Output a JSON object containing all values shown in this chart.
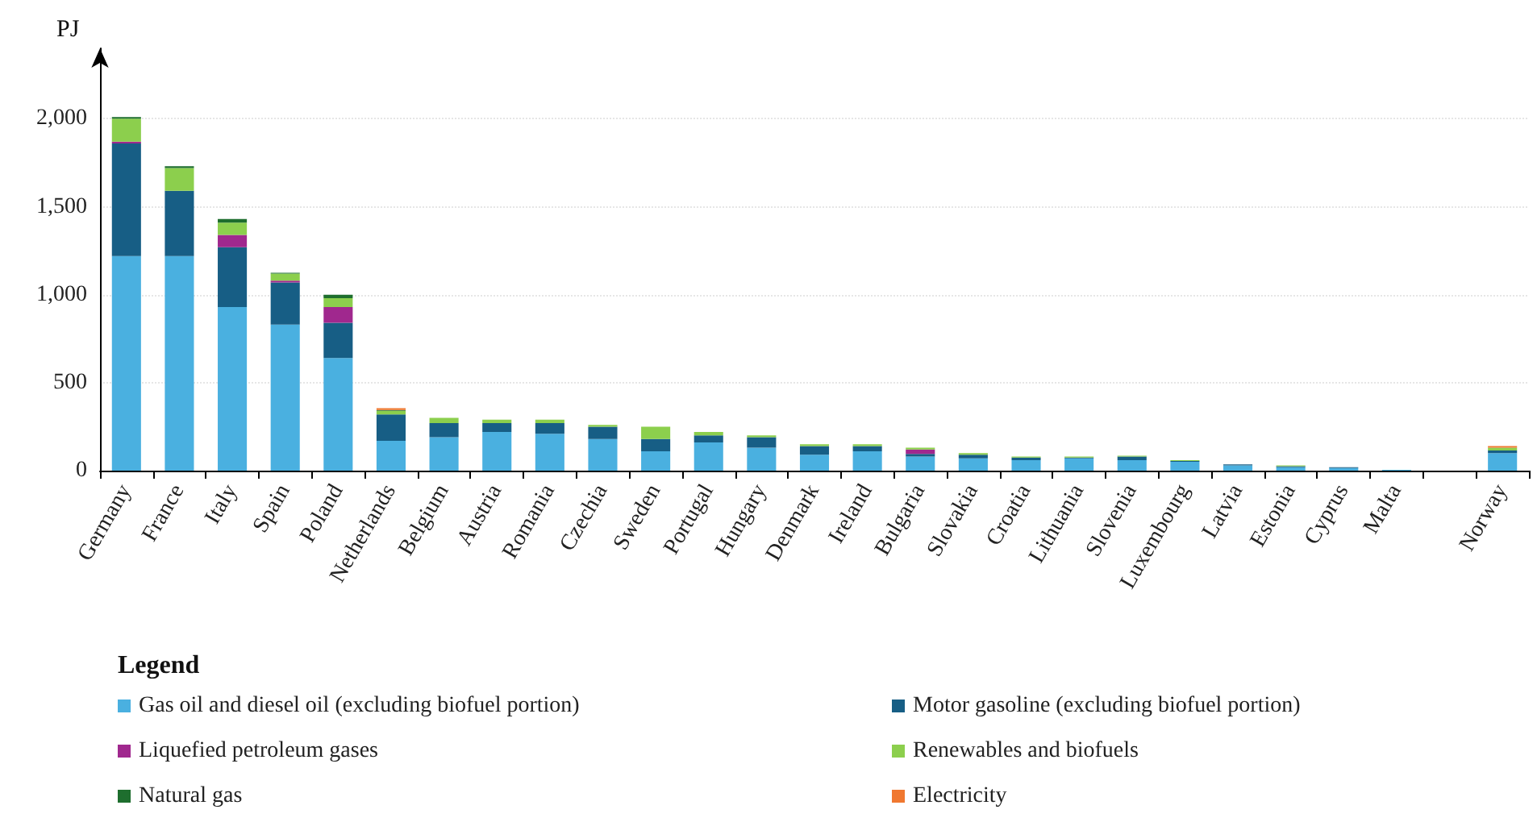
{
  "chart_data": {
    "type": "bar",
    "stacked": true,
    "ylabel": "PJ",
    "legend_title": "Legend",
    "legend": "bottom",
    "grid": "y",
    "categories": [
      "Germany",
      "France",
      "Italy",
      "Spain",
      "Poland",
      "Netherlands",
      "Belgium",
      "Austria",
      "Romania",
      "Czechia",
      "Sweden",
      "Portugal",
      "Hungary",
      "Denmark",
      "Ireland",
      "Bulgaria",
      "Slovakia",
      "Croatia",
      "Lithuania",
      "Slovenia",
      "Luxembourg",
      "Latvia",
      "Estonia",
      "Cyprus",
      "Malta",
      null,
      "Norway"
    ],
    "ylim": [
      0,
      2400
    ],
    "yticks": [
      0,
      500,
      {
        "value": 1000,
        "label": "1,000"
      },
      {
        "value": 1500,
        "label": "1,500"
      },
      {
        "value": 2000,
        "label": "2,000"
      }
    ],
    "series": [
      {
        "name": "Gas oil and diesel oil (excluding biofuel portion)",
        "color": "#4ab0e0",
        "values": [
          1220,
          1220,
          930,
          830,
          640,
          170,
          190,
          220,
          210,
          180,
          110,
          160,
          130,
          90,
          110,
          80,
          70,
          60,
          70,
          60,
          50,
          30,
          20,
          15,
          5,
          null,
          100
        ]
      },
      {
        "name": "Motor gasoline (excluding biofuel portion)",
        "color": "#175e85",
        "values": [
          640,
          370,
          340,
          240,
          200,
          150,
          80,
          50,
          60,
          70,
          70,
          40,
          60,
          50,
          30,
          15,
          20,
          15,
          5,
          20,
          5,
          5,
          5,
          5,
          null,
          null,
          15
        ]
      },
      {
        "name": "Liquefied petroleum gases",
        "color": "#a0288e",
        "values": [
          10,
          null,
          70,
          10,
          90,
          null,
          null,
          null,
          null,
          null,
          null,
          null,
          null,
          null,
          null,
          25,
          null,
          null,
          null,
          null,
          null,
          null,
          null,
          null,
          null,
          null,
          null
        ]
      },
      {
        "name": "Renewables and biofuels",
        "color": "#8ccf4d",
        "values": [
          130,
          130,
          70,
          40,
          50,
          20,
          30,
          20,
          20,
          10,
          70,
          20,
          10,
          10,
          10,
          10,
          10,
          5,
          5,
          5,
          5,
          null,
          5,
          null,
          null,
          null,
          15
        ]
      },
      {
        "name": "Natural gas",
        "color": "#1e6e2e",
        "values": [
          10,
          10,
          20,
          5,
          20,
          5,
          null,
          null,
          null,
          null,
          null,
          null,
          null,
          null,
          null,
          null,
          null,
          null,
          null,
          null,
          null,
          null,
          null,
          null,
          null,
          null,
          null
        ]
      },
      {
        "name": "Electricity",
        "color": "#f07830",
        "values": [
          null,
          null,
          null,
          null,
          null,
          10,
          null,
          null,
          null,
          null,
          null,
          null,
          null,
          null,
          null,
          null,
          null,
          null,
          null,
          null,
          null,
          null,
          null,
          null,
          null,
          null,
          10
        ]
      }
    ]
  }
}
